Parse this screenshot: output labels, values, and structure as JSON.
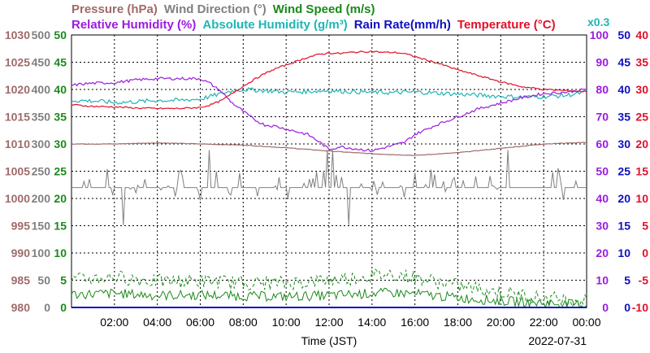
{
  "chart_data": {
    "type": "line",
    "header": {
      "row1": [
        {
          "text": "Pressure (hPa)",
          "color": "#a06a6a"
        },
        {
          "text": "Wind Direction (°)",
          "color": "#808080"
        },
        {
          "text": "Wind Speed (m/s)",
          "color": "#1a8a1a"
        }
      ],
      "row2": [
        {
          "text": "Relative Humidity (%)",
          "color": "#9b1be0"
        },
        {
          "text": "Absolute Humidity (g/m³)",
          "color": "#1fb5b5"
        },
        {
          "text": "Rain Rate(mm/h)",
          "color": "#1010c0"
        },
        {
          "text": "Temperature (°C)",
          "color": "#e0102a"
        }
      ],
      "multiplier": {
        "text": "x0.3",
        "color": "#1fb5b5"
      }
    },
    "xlabel": "Time (JST)",
    "date": "2022-07-31",
    "x_ticks": [
      "02:00",
      "04:00",
      "06:00",
      "08:00",
      "10:00",
      "12:00",
      "14:00",
      "16:00",
      "18:00",
      "20:00",
      "22:00",
      "00:00"
    ],
    "x_tick_hours": [
      2,
      4,
      6,
      8,
      10,
      12,
      14,
      16,
      18,
      20,
      22,
      24
    ],
    "xlim": [
      0,
      24
    ],
    "left_axes": [
      {
        "name": "Pressure (hPa)",
        "color": "#a06a6a",
        "ticks": [
          "980",
          "985",
          "990",
          "995",
          "1000",
          "1005",
          "1010",
          "1015",
          "1020",
          "1025",
          "1030"
        ]
      },
      {
        "name": "Wind Direction (°)",
        "color": "#808080",
        "ticks": [
          "0",
          "50",
          "100",
          "150",
          "200",
          "250",
          "300",
          "350",
          "400",
          "450",
          "500"
        ]
      },
      {
        "name": "Wind Speed (m/s)",
        "color": "#1a8a1a",
        "ticks": [
          "0",
          "5",
          "10",
          "15",
          "20",
          "25",
          "30",
          "35",
          "40",
          "45",
          "50"
        ]
      }
    ],
    "right_axes": [
      {
        "name": "Relative Humidity (%)",
        "color": "#9b1be0",
        "ticks": [
          "0",
          "10",
          "20",
          "30",
          "40",
          "50",
          "60",
          "70",
          "80",
          "90",
          "100"
        ]
      },
      {
        "name": "Rain Rate (mm/h)",
        "color": "#1010c0",
        "ticks": [
          "0",
          "5",
          "10",
          "15",
          "20",
          "25",
          "30",
          "35",
          "40",
          "45",
          "50"
        ]
      },
      {
        "name": "Temperature (°C)",
        "color": "#e0102a",
        "ticks": [
          "-10",
          "-5",
          "0",
          "5",
          "10",
          "15",
          "20",
          "25",
          "30",
          "35",
          "40"
        ]
      }
    ],
    "series": [
      {
        "name": "Temperature (°C)",
        "color": "#e0102a",
        "axis": "temp",
        "x": [
          0,
          1,
          2,
          3,
          4,
          5,
          6,
          6.5,
          7,
          7.5,
          8,
          8.5,
          9,
          9.5,
          10,
          10.5,
          11,
          11.5,
          12,
          12.5,
          13,
          13.5,
          14,
          14.5,
          15,
          15.5,
          16,
          17,
          18,
          19,
          20,
          21,
          22,
          23,
          24
        ],
        "y": [
          27.2,
          26.9,
          26.8,
          26.6,
          26.5,
          26.5,
          26.7,
          27.2,
          28.0,
          29.3,
          30.6,
          31.8,
          32.9,
          33.8,
          34.5,
          35.2,
          35.9,
          36.4,
          36.7,
          36.6,
          36.8,
          36.9,
          37.0,
          36.8,
          36.8,
          36.6,
          36.0,
          34.9,
          33.6,
          32.5,
          31.4,
          30.5,
          30.0,
          29.8,
          29.6
        ]
      },
      {
        "name": "Relative Humidity (%)",
        "color": "#9b1be0",
        "axis": "rh",
        "x": [
          0,
          0.5,
          1,
          2,
          3,
          4,
          5,
          6,
          6.5,
          7,
          7.5,
          8,
          8.5,
          9,
          9.5,
          10,
          10.5,
          11,
          11.5,
          12,
          12.5,
          13,
          13.5,
          14,
          14.5,
          15,
          15.5,
          16,
          17,
          18,
          19,
          20,
          21,
          22,
          23,
          24
        ],
        "y": [
          81.5,
          82.0,
          82.3,
          82.5,
          83.5,
          84.0,
          84.0,
          84.0,
          82.0,
          79.0,
          75.0,
          72.0,
          69.0,
          67.0,
          66.5,
          65.5,
          64.5,
          63.5,
          61.0,
          58.0,
          59.0,
          58.5,
          58.0,
          57.5,
          58.5,
          59.5,
          60.5,
          63.5,
          67.0,
          70.0,
          73.0,
          75.0,
          77.0,
          78.5,
          79.0,
          80.0
        ]
      },
      {
        "name": "Absolute Humidity (g/m³)",
        "color": "#1fb5b5",
        "axis": "rh",
        "scale": "x0.3",
        "x": [
          0,
          1,
          2,
          3,
          4,
          5,
          6,
          6.5,
          7,
          7.5,
          8,
          9,
          10,
          11,
          12,
          13,
          14,
          15,
          16,
          17,
          18,
          19,
          20,
          21,
          22,
          23,
          24
        ],
        "y": [
          76.0,
          75.8,
          75.2,
          75.5,
          76.0,
          76.0,
          76.5,
          77.5,
          78.5,
          79.5,
          80.0,
          79.6,
          79.0,
          79.3,
          79.6,
          79.2,
          79.0,
          78.8,
          79.1,
          78.7,
          78.3,
          77.9,
          77.5,
          77.2,
          77.4,
          77.8,
          79.0
        ]
      },
      {
        "name": "Pressure (hPa)",
        "color": "#a06a6a",
        "axis": "pres",
        "x": [
          0,
          2,
          4,
          6,
          8,
          10,
          12,
          14,
          16,
          18,
          20,
          22,
          24
        ],
        "y": [
          1010.0,
          1010.0,
          1010.2,
          1010.0,
          1009.8,
          1009.3,
          1008.7,
          1008.2,
          1007.9,
          1008.4,
          1009.2,
          1010.0,
          1010.3
        ]
      },
      {
        "name": "Wind Direction (°)",
        "color": "#808080",
        "axis": "wdir",
        "style": "noisy",
        "base": 220,
        "amp": 30,
        "x": [
          0,
          24
        ],
        "y": [
          220,
          220
        ]
      },
      {
        "name": "Wind Speed (m/s)",
        "color": "#1a8a1a",
        "axis": "wspd",
        "style": "noisy-pair",
        "x": [
          0,
          2,
          4,
          6,
          8,
          10,
          12,
          14,
          15,
          16,
          18,
          20,
          22,
          24
        ],
        "y": [
          2.4,
          2.6,
          2.2,
          2.3,
          2.1,
          2.0,
          2.2,
          2.6,
          2.7,
          2.5,
          1.8,
          1.2,
          0.8,
          0.5
        ],
        "gust": [
          5.0,
          5.6,
          4.8,
          4.9,
          4.5,
          4.5,
          5.0,
          5.8,
          6.2,
          5.5,
          4.0,
          2.8,
          1.8,
          1.2
        ]
      },
      {
        "name": "Rain Rate (mm/h)",
        "color": "#1010c0",
        "axis": "rain",
        "x": [
          0,
          24
        ],
        "y": [
          0,
          0
        ]
      }
    ]
  }
}
